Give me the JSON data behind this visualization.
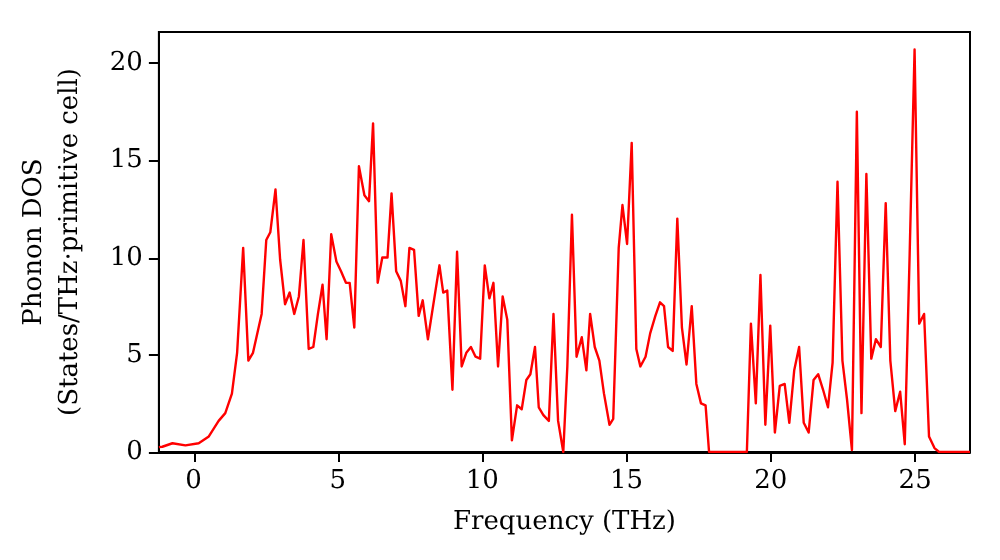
{
  "chart_data": {
    "type": "line",
    "xlabel": "Frequency (THz)",
    "ylabel": "Phonon DOS\n(States/THz·primitive cell)",
    "xlim": [
      -1.2,
      26.9
    ],
    "ylim": [
      0,
      21.6
    ],
    "xticks": [
      0,
      5,
      10,
      15,
      20,
      25
    ],
    "yticks": [
      0,
      5,
      10,
      15,
      20
    ],
    "grid": false,
    "marker": "none",
    "line_style": "solid",
    "x": [
      -1.2,
      -1.08,
      -0.73,
      -0.28,
      0.18,
      0.53,
      0.87,
      1.1,
      1.33,
      1.51,
      1.72,
      1.9,
      2.06,
      2.36,
      2.52,
      2.66,
      2.84,
      3.0,
      3.17,
      3.33,
      3.49,
      3.65,
      3.81,
      3.99,
      4.15,
      4.31,
      4.47,
      4.61,
      4.77,
      4.95,
      5.11,
      5.28,
      5.41,
      5.57,
      5.73,
      5.92,
      6.08,
      6.22,
      6.38,
      6.54,
      6.72,
      6.86,
      7.02,
      7.18,
      7.34,
      7.48,
      7.64,
      7.8,
      7.94,
      8.12,
      8.33,
      8.52,
      8.65,
      8.79,
      8.97,
      9.13,
      9.29,
      9.45,
      9.61,
      9.77,
      9.93,
      10.09,
      10.25,
      10.39,
      10.55,
      10.71,
      10.87,
      11.03,
      11.21,
      11.37,
      11.53,
      11.67,
      11.83,
      11.96,
      12.12,
      12.31,
      12.47,
      12.63,
      12.81,
      12.95,
      13.11,
      13.27,
      13.45,
      13.61,
      13.74,
      13.9,
      14.06,
      14.22,
      14.41,
      14.54,
      14.73,
      14.86,
      15.02,
      15.18,
      15.34,
      15.48,
      15.66,
      15.82,
      16.0,
      16.16,
      16.3,
      16.44,
      16.6,
      16.76,
      16.92,
      17.08,
      17.26,
      17.42,
      17.58,
      17.74,
      17.86,
      19.17,
      19.31,
      19.48,
      19.64,
      19.81,
      19.98,
      20.14,
      20.31,
      20.48,
      20.64,
      20.81,
      20.98,
      21.14,
      21.31,
      21.48,
      21.64,
      21.81,
      21.98,
      22.14,
      22.31,
      22.48,
      22.64,
      22.81,
      22.98,
      23.14,
      23.31,
      23.48,
      23.64,
      23.81,
      23.98,
      24.14,
      24.31,
      24.48,
      24.64,
      24.81,
      24.98,
      25.14,
      25.31,
      25.48,
      25.67,
      25.83,
      26.9
    ],
    "series": [
      {
        "color": "#ff0000",
        "values": [
          0.25,
          0.27,
          0.45,
          0.34,
          0.45,
          0.8,
          1.6,
          2.0,
          3.0,
          5.1,
          10.5,
          4.7,
          5.1,
          7.1,
          10.9,
          11.3,
          13.5,
          9.9,
          7.6,
          8.2,
          7.1,
          8.0,
          10.9,
          5.3,
          5.4,
          7.1,
          8.6,
          5.8,
          11.2,
          9.8,
          9.3,
          8.7,
          8.7,
          6.4,
          14.7,
          13.2,
          12.9,
          16.9,
          8.7,
          10.0,
          10.0,
          13.3,
          9.3,
          8.8,
          7.5,
          10.5,
          10.4,
          7.0,
          7.8,
          5.8,
          7.8,
          9.6,
          8.2,
          8.3,
          3.2,
          10.3,
          4.4,
          5.1,
          5.4,
          4.9,
          4.8,
          9.6,
          7.9,
          8.7,
          4.4,
          8.0,
          6.8,
          0.6,
          2.4,
          2.2,
          3.7,
          4.0,
          5.4,
          2.3,
          1.9,
          1.6,
          7.1,
          1.6,
          0,
          4.4,
          12.2,
          4.9,
          5.9,
          4.2,
          7.1,
          5.4,
          4.7,
          3.0,
          1.4,
          1.7,
          10.5,
          12.7,
          10.7,
          15.9,
          5.3,
          4.4,
          4.9,
          6.1,
          7.0,
          7.7,
          7.5,
          5.4,
          5.2,
          12.0,
          6.4,
          4.5,
          7.5,
          3.5,
          2.5,
          2.4,
          0,
          0,
          6.6,
          2.5,
          9.1,
          1.4,
          6.5,
          1.0,
          3.4,
          3.5,
          1.5,
          4.2,
          5.4,
          1.5,
          1.0,
          3.7,
          4.0,
          3.2,
          2.3,
          4.6,
          13.9,
          4.7,
          2.7,
          0.1,
          17.5,
          2.0,
          14.3,
          4.8,
          5.8,
          5.4,
          12.8,
          4.7,
          2.1,
          3.1,
          0.4,
          10.2,
          20.7,
          6.6,
          7.1,
          0.8,
          0.2,
          0,
          0
        ]
      }
    ]
  }
}
